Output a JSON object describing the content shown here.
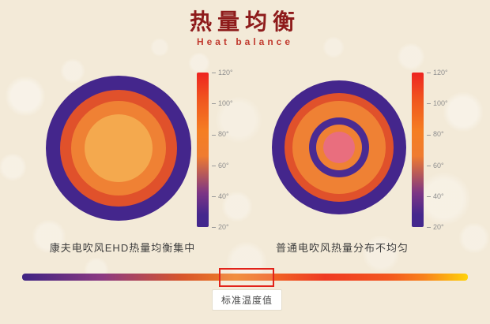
{
  "header": {
    "title": "热量均衡",
    "subtitle": "Heat balance"
  },
  "panels": {
    "left": {
      "caption": "康夫电吹风EHD热量均衡集中",
      "rings": [
        {
          "d": 184,
          "color": "#44268c"
        },
        {
          "d": 148,
          "color": "#e0512b"
        },
        {
          "d": 120,
          "color": "#ef8134"
        },
        {
          "d": 86,
          "color": "#f4a94e"
        }
      ]
    },
    "right": {
      "caption": "普通电吹风热量分布不均匀",
      "rings": [
        {
          "d": 170,
          "color": "#44268c"
        },
        {
          "d": 138,
          "color": "#e0512b"
        },
        {
          "d": 118,
          "color": "#ef8134"
        },
        {
          "d": 76,
          "color": "#4a2b92"
        },
        {
          "d": 58,
          "color": "#ef8134"
        },
        {
          "d": 40,
          "color": "#e96e7e"
        }
      ]
    }
  },
  "scale": {
    "labels": [
      "120°",
      "100°",
      "80°",
      "60°",
      "40°",
      "20°"
    ]
  },
  "footer": {
    "label": "标准温度值"
  },
  "colors": {
    "background": "#f3ead8",
    "title": "#8e1b1b",
    "subtitle": "#c13a2e",
    "caption": "#3d3d3d",
    "highlight_border": "#e2231a",
    "scale_top": "#ee2420",
    "scale_bottom": "#42278d"
  }
}
